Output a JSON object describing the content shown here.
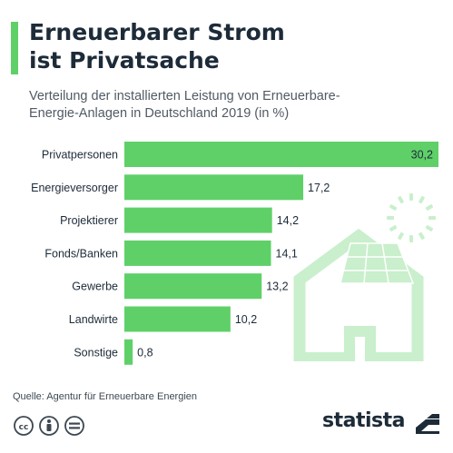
{
  "header": {
    "title_line1": "Erneuerbarer Strom",
    "title_line2": "ist Privatsache",
    "subtitle_line1": "Verteilung der installierten Leistung von Erneuerbare-",
    "subtitle_line2": "Energie-Anlagen in Deutschland 2019 (in %)"
  },
  "chart_data": {
    "type": "bar",
    "orientation": "horizontal",
    "title": "Erneuerbarer Strom ist Privatsache",
    "subtitle": "Verteilung der installierten Leistung von Erneuerbare-Energie-Anlagen in Deutschland 2019 (in %)",
    "categories": [
      "Privatpersonen",
      "Energieversorger",
      "Projektierer",
      "Fonds/Banken",
      "Gewerbe",
      "Landwirte",
      "Sonstige"
    ],
    "values": [
      30.2,
      17.2,
      14.2,
      14.1,
      13.2,
      10.2,
      0.8
    ],
    "value_labels": [
      "30,2",
      "17,2",
      "14,2",
      "14,1",
      "13,2",
      "10,2",
      "0,8"
    ],
    "xlim": [
      0,
      30.2
    ],
    "grid": false,
    "legend": "none",
    "bar_color": "#5fd068"
  },
  "illustration": {
    "icons": [
      "sun-icon",
      "house-with-solar-panel-icon"
    ],
    "color": "#c9efcc"
  },
  "footer": {
    "source": "Quelle: Agentur für Erneuerbare Energien",
    "license_icons": [
      "cc-icon",
      "by-icon",
      "nd-icon"
    ],
    "brand": "statista"
  },
  "colors": {
    "accent": "#5fd068",
    "title": "#1d2b39",
    "text": "#505a64"
  }
}
